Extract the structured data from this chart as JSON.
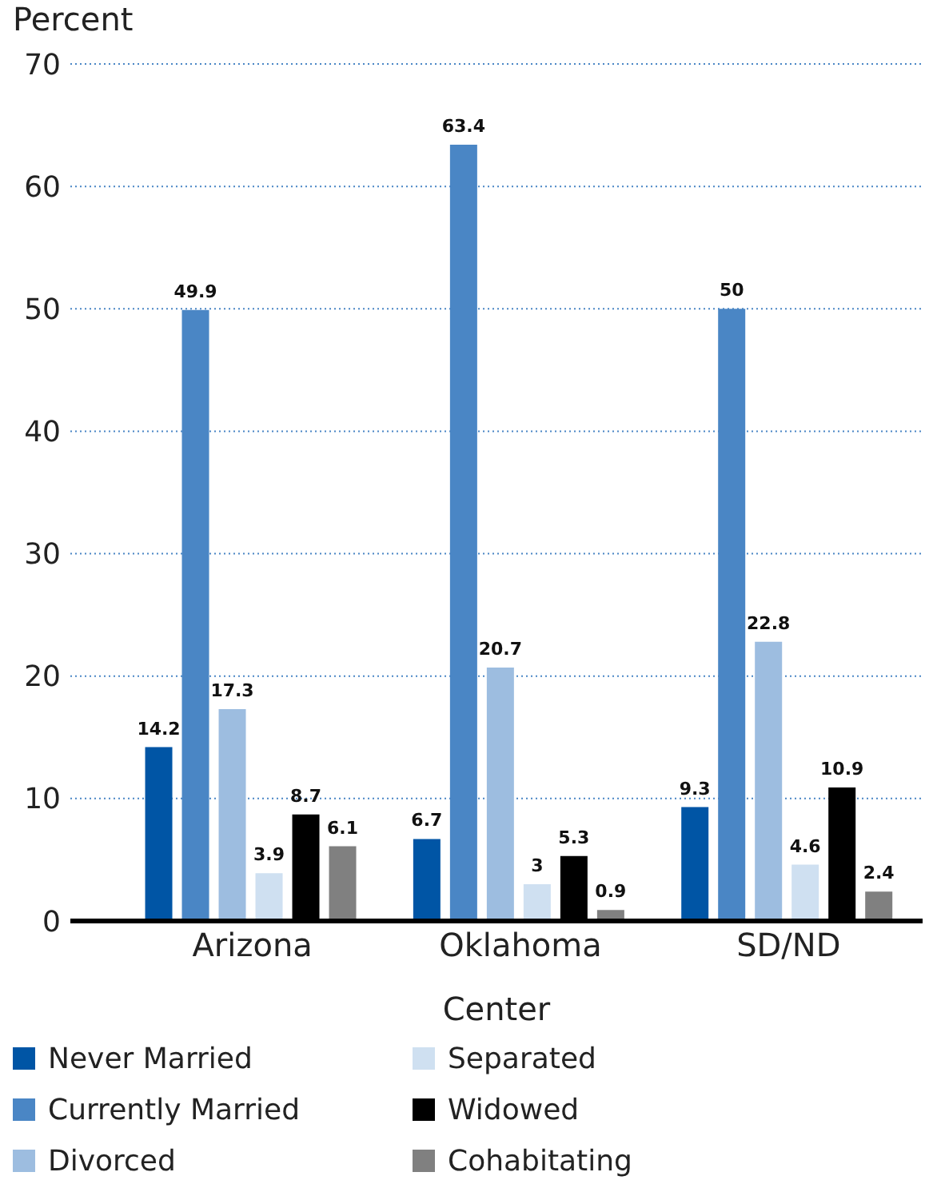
{
  "chart_data": {
    "type": "bar",
    "xlabel": "Center",
    "ylabel": "Percent",
    "categories": [
      "Arizona",
      "Oklahoma",
      "SD/ND"
    ],
    "series": [
      {
        "name": "Never Married",
        "color": "#0055a5",
        "values": [
          14.2,
          6.7,
          9.3
        ]
      },
      {
        "name": "Currently Married",
        "color": "#4a86c5",
        "values": [
          49.9,
          63.4,
          50
        ]
      },
      {
        "name": "Divorced",
        "color": "#9dbde0",
        "values": [
          17.3,
          20.7,
          22.8
        ]
      },
      {
        "name": "Separated",
        "color": "#cfe0f1",
        "values": [
          3.9,
          3,
          4.6
        ]
      },
      {
        "name": "Widowed",
        "color": "#000000",
        "values": [
          8.7,
          5.3,
          10.9
        ]
      },
      {
        "name": "Cohabitating",
        "color": "#808080",
        "values": [
          6.1,
          0.9,
          2.4
        ]
      }
    ],
    "ylim": [
      0,
      70
    ],
    "yticks": [
      0,
      10,
      20,
      30,
      40,
      50,
      60,
      70
    ],
    "grid": "y",
    "legend": "bottom",
    "data_labels": true
  }
}
